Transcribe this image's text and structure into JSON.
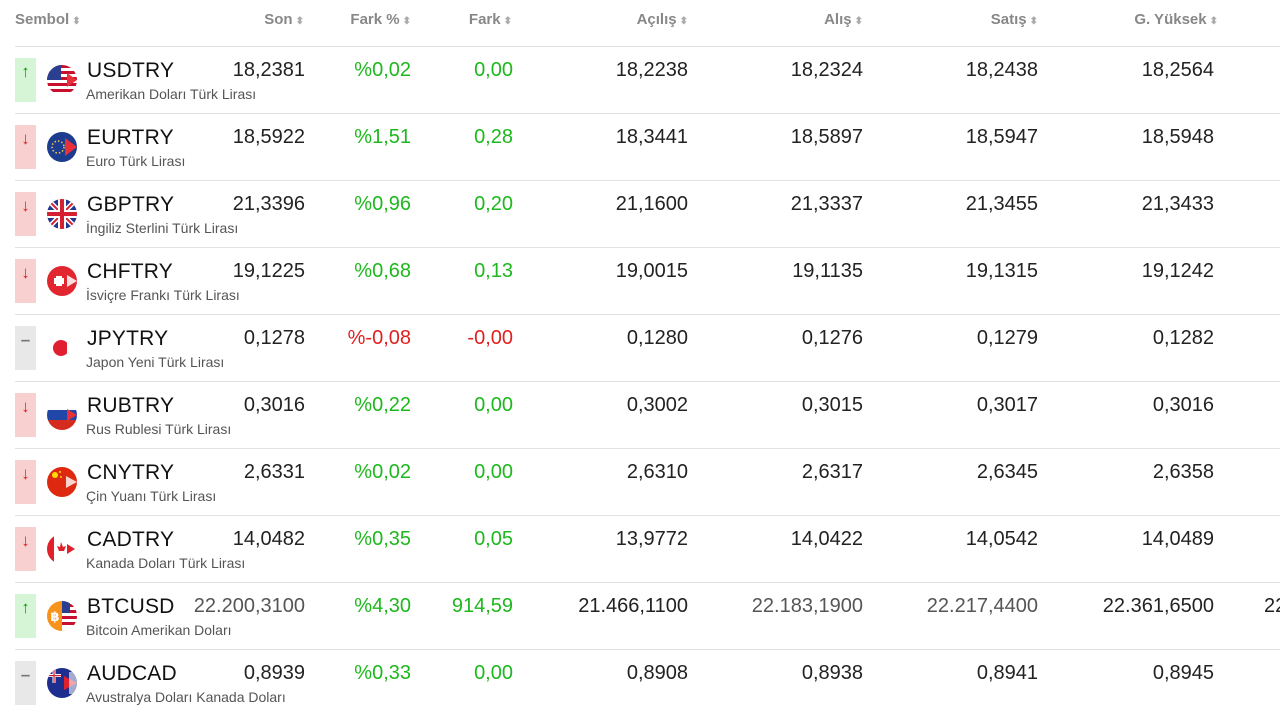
{
  "headers": {
    "sembol": "Sembol",
    "son": "Son",
    "fark_pct": "Fark %",
    "fark": "Fark",
    "acilis": "Açılış",
    "alis": "Alış",
    "satis": "Satış",
    "g_yuksek": "G. Yüksek",
    "sort_glyph": "⬍"
  },
  "rows": [
    {
      "trend": "up",
      "trend_glyph": "↑",
      "symbol": "USDTRY",
      "name": "Amerikan Doları Türk Lirası",
      "son": "18,2381",
      "fark_pct": "%0,02",
      "fark": "0,00",
      "acilis": "18,2238",
      "alis": "18,2324",
      "satis": "18,2438",
      "g_yuksek": "18,2564",
      "flag": "us-flag-icon"
    },
    {
      "trend": "down",
      "trend_glyph": "↓",
      "symbol": "EURTRY",
      "name": "Euro Türk Lirası",
      "son": "18,5922",
      "fark_pct": "%1,51",
      "fark": "0,28",
      "acilis": "18,3441",
      "alis": "18,5897",
      "satis": "18,5947",
      "g_yuksek": "18,5948",
      "flag": "eu-flag-icon"
    },
    {
      "trend": "down",
      "trend_glyph": "↓",
      "symbol": "GBPTRY",
      "name": "İngiliz Sterlini Türk Lirası",
      "son": "21,3396",
      "fark_pct": "%0,96",
      "fark": "0,20",
      "acilis": "21,1600",
      "alis": "21,3337",
      "satis": "21,3455",
      "g_yuksek": "21,3433",
      "flag": "gb-flag-icon"
    },
    {
      "trend": "down",
      "trend_glyph": "↓",
      "symbol": "CHFTRY",
      "name": "İsviçre Frankı Türk Lirası",
      "son": "19,1225",
      "fark_pct": "%0,68",
      "fark": "0,13",
      "acilis": "19,0015",
      "alis": "19,1135",
      "satis": "19,1315",
      "g_yuksek": "19,1242",
      "flag": "ch-flag-icon"
    },
    {
      "trend": "flat",
      "trend_glyph": "–",
      "symbol": "JPYTRY",
      "name": "Japon Yeni Türk Lirası",
      "son": "0,1278",
      "fark_pct": "%-0,08",
      "fark": "-0,00",
      "acilis": "0,1280",
      "alis": "0,1276",
      "satis": "0,1279",
      "g_yuksek": "0,1282",
      "flag": "jp-flag-icon",
      "negative": true
    },
    {
      "trend": "down",
      "trend_glyph": "↓",
      "symbol": "RUBTRY",
      "name": "Rus Rublesi Türk Lirası",
      "son": "0,3016",
      "fark_pct": "%0,22",
      "fark": "0,00",
      "acilis": "0,3002",
      "alis": "0,3015",
      "satis": "0,3017",
      "g_yuksek": "0,3016",
      "flag": "ru-flag-icon"
    },
    {
      "trend": "down",
      "trend_glyph": "↓",
      "symbol": "CNYTRY",
      "name": "Çin Yuanı Türk Lirası",
      "son": "2,6331",
      "fark_pct": "%0,02",
      "fark": "0,00",
      "acilis": "2,6310",
      "alis": "2,6317",
      "satis": "2,6345",
      "g_yuksek": "2,6358",
      "flag": "cn-flag-icon"
    },
    {
      "trend": "down",
      "trend_glyph": "↓",
      "symbol": "CADTRY",
      "name": "Kanada Doları Türk Lirası",
      "son": "14,0482",
      "fark_pct": "%0,35",
      "fark": "0,05",
      "acilis": "13,9772",
      "alis": "14,0422",
      "satis": "14,0542",
      "g_yuksek": "14,0489",
      "flag": "ca-flag-icon"
    },
    {
      "trend": "up",
      "trend_glyph": "↑",
      "symbol": "BTCUSD",
      "name": "Bitcoin Amerikan Doları",
      "son": "22.200,3100",
      "fark_pct": "%4,30",
      "fark": "914,59",
      "acilis": "21.466,1100",
      "alis": "22.183,1900",
      "satis": "22.217,4400",
      "g_yuksek": "22.361,6500",
      "extra": "22",
      "flag": "btc-flag-icon",
      "dim": true
    },
    {
      "trend": "flat",
      "trend_glyph": "–",
      "symbol": "AUDCAD",
      "name": "Avustralya Doları Kanada Doları",
      "son": "0,8939",
      "fark_pct": "%0,33",
      "fark": "0,00",
      "acilis": "0,8908",
      "alis": "0,8938",
      "satis": "0,8941",
      "g_yuksek": "0,8945",
      "flag": "au-flag-icon"
    }
  ],
  "colors": {
    "positive": "#1db81d",
    "negative": "#e02020",
    "up_bg": "#d6f5d6",
    "down_bg": "#f9d0d0",
    "flat_bg": "#e8e8e8"
  }
}
